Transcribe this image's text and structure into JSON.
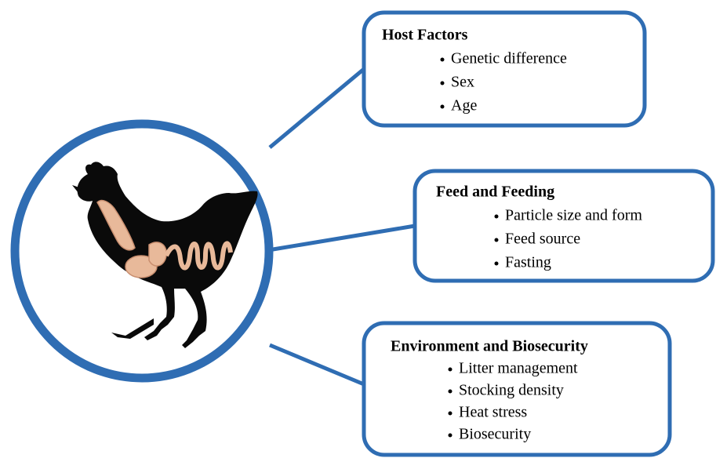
{
  "boxes": [
    {
      "title": "Host Factors",
      "items": [
        "Genetic difference",
        "Sex",
        "Age"
      ]
    },
    {
      "title": "Feed and Feeding",
      "items": [
        "Particle size and form",
        "Feed source",
        "Fasting"
      ]
    },
    {
      "title": "Environment and Biosecurity",
      "items": [
        "Litter management",
        "Stocking density",
        "Heat stress",
        "Biosecurity"
      ]
    }
  ]
}
